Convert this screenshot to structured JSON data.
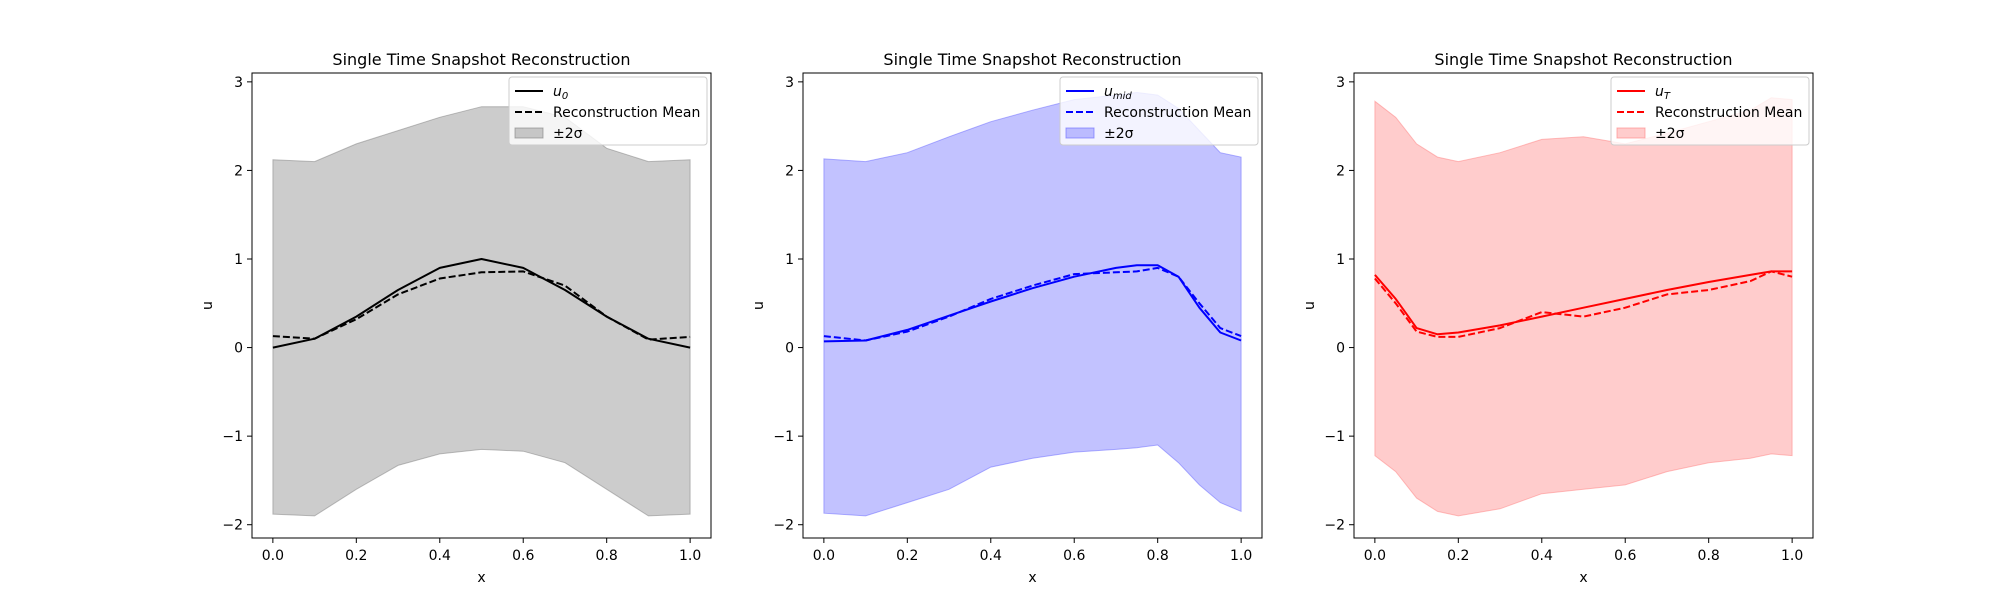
{
  "chart_data": [
    {
      "type": "line",
      "title": "Single Time Snapshot Reconstruction",
      "xlabel": "x",
      "ylabel": "u",
      "xlim": [
        -0.05,
        1.05
      ],
      "ylim": [
        -2.15,
        3.1
      ],
      "xticks": [
        "0.0",
        "0.2",
        "0.4",
        "0.6",
        "0.8",
        "1.0"
      ],
      "yticks": [
        "−2",
        "−1",
        "0",
        "1",
        "2",
        "3"
      ],
      "legend_position": "top-right",
      "grid": false,
      "color": "#000000",
      "band_color": "#808080",
      "legend": [
        {
          "label": "u",
          "sub": "0",
          "style": "solid"
        },
        {
          "label": "Reconstruction Mean",
          "sub": "",
          "style": "dashed"
        },
        {
          "label": "±2σ",
          "sub": "",
          "style": "band"
        }
      ],
      "x": [
        0.0,
        0.1,
        0.2,
        0.3,
        0.4,
        0.5,
        0.6,
        0.7,
        0.8,
        0.9,
        1.0
      ],
      "series": [
        {
          "name": "u_0",
          "style": "solid",
          "values": [
            0.0,
            0.1,
            0.35,
            0.65,
            0.9,
            1.0,
            0.9,
            0.65,
            0.35,
            0.1,
            0.0
          ]
        },
        {
          "name": "Reconstruction Mean",
          "style": "dashed",
          "values": [
            0.13,
            0.1,
            0.32,
            0.6,
            0.78,
            0.85,
            0.86,
            0.7,
            0.35,
            0.09,
            0.12
          ]
        }
      ],
      "band": {
        "upper": [
          2.12,
          2.1,
          2.3,
          2.45,
          2.6,
          2.72,
          2.72,
          2.6,
          2.25,
          2.1,
          2.12
        ],
        "lower": [
          -1.88,
          -1.9,
          -1.6,
          -1.33,
          -1.2,
          -1.15,
          -1.17,
          -1.3,
          -1.6,
          -1.9,
          -1.88
        ]
      }
    },
    {
      "type": "line",
      "title": "Single Time Snapshot Reconstruction",
      "xlabel": "x",
      "ylabel": "u",
      "xlim": [
        -0.05,
        1.05
      ],
      "ylim": [
        -2.15,
        3.1
      ],
      "xticks": [
        "0.0",
        "0.2",
        "0.4",
        "0.6",
        "0.8",
        "1.0"
      ],
      "yticks": [
        "−2",
        "−1",
        "0",
        "1",
        "2",
        "3"
      ],
      "legend_position": "top-right",
      "grid": false,
      "color": "#0000ff",
      "band_color": "#6666ff",
      "legend": [
        {
          "label": "u",
          "sub": "mid",
          "style": "solid"
        },
        {
          "label": "Reconstruction Mean",
          "sub": "",
          "style": "dashed"
        },
        {
          "label": "±2σ",
          "sub": "",
          "style": "band"
        }
      ],
      "x": [
        0.0,
        0.1,
        0.2,
        0.3,
        0.4,
        0.5,
        0.6,
        0.7,
        0.75,
        0.8,
        0.85,
        0.9,
        0.95,
        1.0
      ],
      "series": [
        {
          "name": "u_mid",
          "style": "solid",
          "values": [
            0.07,
            0.08,
            0.2,
            0.36,
            0.52,
            0.67,
            0.8,
            0.9,
            0.93,
            0.93,
            0.8,
            0.45,
            0.17,
            0.08
          ]
        },
        {
          "name": "Reconstruction Mean",
          "style": "dashed",
          "values": [
            0.13,
            0.08,
            0.18,
            0.35,
            0.55,
            0.7,
            0.83,
            0.85,
            0.86,
            0.9,
            0.8,
            0.5,
            0.22,
            0.13
          ]
        }
      ],
      "band": {
        "upper": [
          2.13,
          2.1,
          2.2,
          2.38,
          2.55,
          2.68,
          2.8,
          2.85,
          2.88,
          2.85,
          2.7,
          2.45,
          2.2,
          2.15
        ],
        "lower": [
          -1.87,
          -1.9,
          -1.75,
          -1.6,
          -1.35,
          -1.25,
          -1.18,
          -1.15,
          -1.13,
          -1.1,
          -1.3,
          -1.55,
          -1.75,
          -1.85
        ]
      }
    },
    {
      "type": "line",
      "title": "Single Time Snapshot Reconstruction",
      "xlabel": "x",
      "ylabel": "u",
      "xlim": [
        -0.05,
        1.05
      ],
      "ylim": [
        -2.15,
        3.1
      ],
      "xticks": [
        "0.0",
        "0.2",
        "0.4",
        "0.6",
        "0.8",
        "1.0"
      ],
      "yticks": [
        "−2",
        "−1",
        "0",
        "1",
        "2",
        "3"
      ],
      "legend_position": "top-right",
      "grid": false,
      "color": "#ff0000",
      "band_color": "#ff8080",
      "legend": [
        {
          "label": "u",
          "sub": "T",
          "style": "solid"
        },
        {
          "label": "Reconstruction Mean",
          "sub": "",
          "style": "dashed"
        },
        {
          "label": "±2σ",
          "sub": "",
          "style": "band"
        }
      ],
      "x": [
        0.0,
        0.05,
        0.1,
        0.15,
        0.2,
        0.3,
        0.4,
        0.5,
        0.6,
        0.7,
        0.8,
        0.9,
        0.95,
        1.0
      ],
      "series": [
        {
          "name": "u_T",
          "style": "solid",
          "values": [
            0.82,
            0.55,
            0.22,
            0.15,
            0.17,
            0.25,
            0.35,
            0.45,
            0.55,
            0.65,
            0.74,
            0.82,
            0.86,
            0.86
          ]
        },
        {
          "name": "Reconstruction Mean",
          "style": "dashed",
          "values": [
            0.78,
            0.5,
            0.18,
            0.12,
            0.12,
            0.22,
            0.4,
            0.35,
            0.45,
            0.6,
            0.65,
            0.75,
            0.86,
            0.8
          ]
        }
      ],
      "band": {
        "upper": [
          2.78,
          2.6,
          2.3,
          2.15,
          2.1,
          2.2,
          2.35,
          2.38,
          2.3,
          2.42,
          2.55,
          2.68,
          2.82,
          2.8
        ],
        "lower": [
          -1.22,
          -1.4,
          -1.7,
          -1.85,
          -1.9,
          -1.82,
          -1.65,
          -1.6,
          -1.55,
          -1.4,
          -1.3,
          -1.25,
          -1.2,
          -1.22
        ]
      }
    }
  ]
}
